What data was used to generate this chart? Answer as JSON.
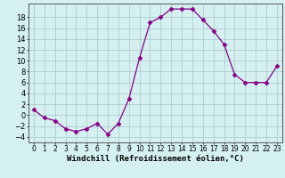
{
  "x": [
    0,
    1,
    2,
    3,
    4,
    5,
    6,
    7,
    8,
    9,
    10,
    11,
    12,
    13,
    14,
    15,
    16,
    17,
    18,
    19,
    20,
    21,
    22,
    23
  ],
  "y": [
    1,
    -0.5,
    -1.0,
    -2.5,
    -3.0,
    -2.5,
    -1.5,
    -3.5,
    -1.5,
    3.0,
    10.5,
    17.0,
    18.0,
    19.5,
    19.5,
    19.5,
    17.5,
    15.5,
    13.0,
    7.5,
    6.0,
    6.0,
    6.0,
    9.0
  ],
  "line_color": "#880088",
  "marker": "D",
  "marker_size": 2.5,
  "bg_color": "#d5f0f0",
  "grid_color": "#b0cccc",
  "xlabel": "Windchill (Refroidissement éolien,°C)",
  "xlim": [
    -0.5,
    23.5
  ],
  "ylim": [
    -5,
    20.5
  ],
  "yticks": [
    -4,
    -2,
    0,
    2,
    4,
    6,
    8,
    10,
    12,
    14,
    16,
    18
  ],
  "xtick_labels": [
    "0",
    "1",
    "2",
    "3",
    "4",
    "5",
    "6",
    "7",
    "8",
    "9",
    "10",
    "11",
    "12",
    "13",
    "14",
    "15",
    "16",
    "17",
    "18",
    "19",
    "20",
    "21",
    "22",
    "23"
  ],
  "xlabel_fontsize": 6.5,
  "ytick_fontsize": 6,
  "xtick_fontsize": 5.5
}
